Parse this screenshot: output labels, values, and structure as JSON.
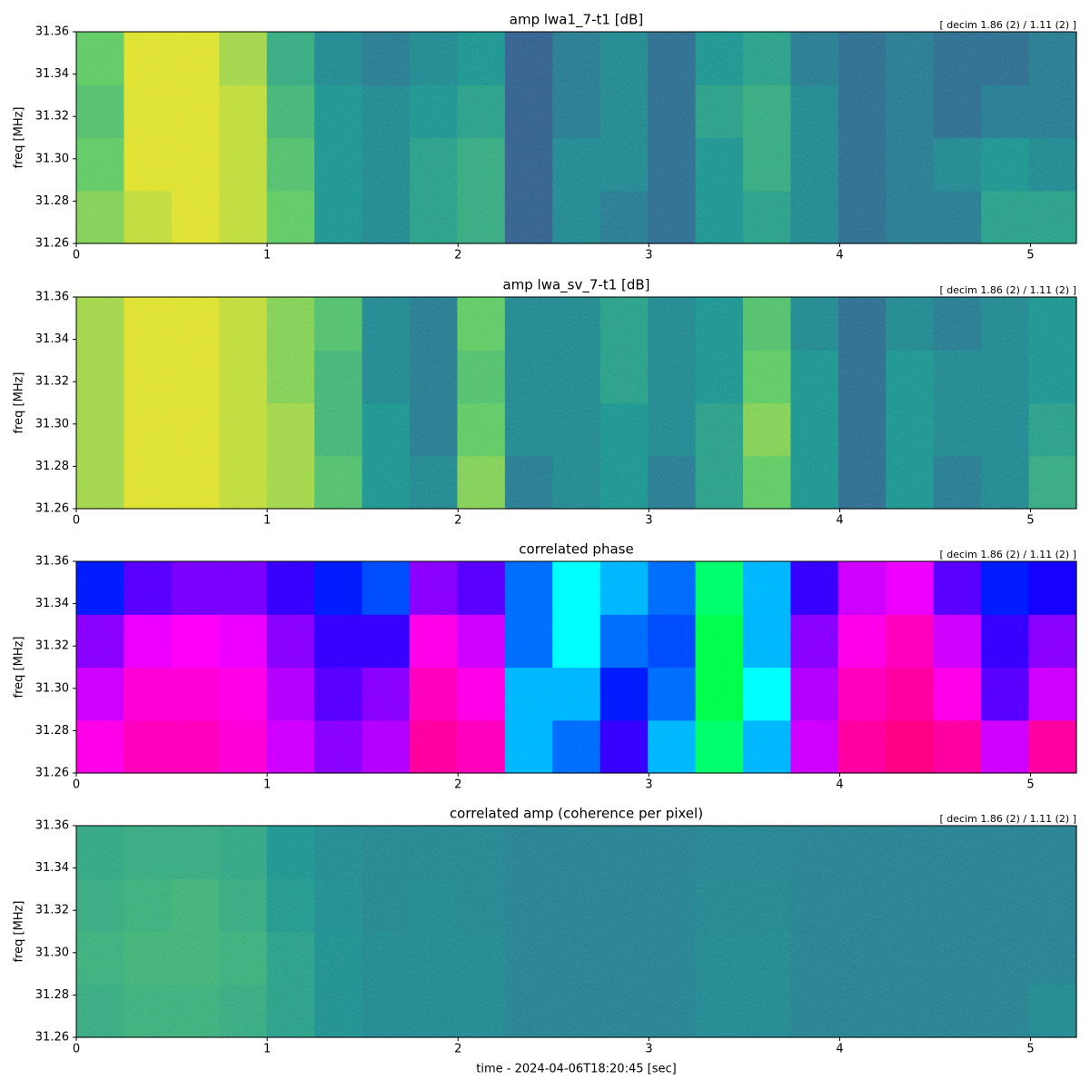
{
  "chart_data": [
    {
      "type": "heatmap",
      "title": "amp lwa1_7-t1 [dB]",
      "note": "[ decim 1.86 (2) / 1.11 (2) ]",
      "ylabel": "freq [MHz]",
      "xlim": [
        0,
        5.24
      ],
      "xticks": [
        0,
        1,
        2,
        3,
        4,
        5
      ],
      "ylim": [
        31.26,
        31.36
      ],
      "yticks": [
        31.26,
        31.28,
        {
          "value": 31.3,
          "label": "31.30"
        },
        31.32,
        31.34,
        31.36
      ],
      "colors": [
        "#440154",
        "#3b528b",
        "#21918c",
        "#5ec962",
        "#fde725"
      ],
      "values": [
        [
          0.8,
          0.9,
          0.95,
          0.9,
          0.75,
          0.5,
          0.45,
          0.55,
          0.6,
          0.3,
          0.45,
          0.4,
          0.35,
          0.5,
          0.55,
          0.45,
          0.35,
          0.4,
          0.4,
          0.55,
          0.55
        ],
        [
          0.75,
          0.95,
          0.95,
          0.9,
          0.7,
          0.5,
          0.45,
          0.55,
          0.6,
          0.3,
          0.45,
          0.45,
          0.35,
          0.5,
          0.6,
          0.45,
          0.35,
          0.4,
          0.45,
          0.5,
          0.45
        ],
        [
          0.7,
          0.95,
          0.95,
          0.9,
          0.65,
          0.5,
          0.45,
          0.5,
          0.55,
          0.3,
          0.4,
          0.45,
          0.35,
          0.55,
          0.6,
          0.45,
          0.35,
          0.4,
          0.35,
          0.4,
          0.4
        ],
        [
          0.75,
          0.95,
          0.95,
          0.85,
          0.6,
          0.45,
          0.4,
          0.45,
          0.5,
          0.3,
          0.4,
          0.45,
          0.35,
          0.5,
          0.55,
          0.4,
          0.35,
          0.4,
          0.35,
          0.35,
          0.4
        ]
      ]
    },
    {
      "type": "heatmap",
      "title": "amp lwa_sv_7-t1 [dB]",
      "note": "[ decim 1.86 (2) / 1.11 (2) ]",
      "ylabel": "freq [MHz]",
      "xlim": [
        0,
        5.24
      ],
      "xticks": [
        0,
        1,
        2,
        3,
        4,
        5
      ],
      "ylim": [
        31.26,
        31.36
      ],
      "yticks": [
        31.26,
        31.28,
        {
          "value": 31.3,
          "label": "31.30"
        },
        31.32,
        31.34,
        31.36
      ],
      "colors": [
        "#440154",
        "#3b528b",
        "#21918c",
        "#5ec962",
        "#fde725"
      ],
      "values": [
        [
          0.85,
          0.95,
          0.95,
          0.9,
          0.85,
          0.7,
          0.5,
          0.45,
          0.8,
          0.4,
          0.45,
          0.5,
          0.4,
          0.55,
          0.75,
          0.5,
          0.35,
          0.5,
          0.4,
          0.45,
          0.6
        ],
        [
          0.85,
          0.95,
          0.95,
          0.9,
          0.85,
          0.65,
          0.5,
          0.4,
          0.75,
          0.45,
          0.45,
          0.5,
          0.45,
          0.55,
          0.8,
          0.5,
          0.35,
          0.5,
          0.45,
          0.45,
          0.55
        ],
        [
          0.85,
          0.95,
          0.95,
          0.9,
          0.8,
          0.65,
          0.45,
          0.4,
          0.7,
          0.45,
          0.45,
          0.55,
          0.45,
          0.5,
          0.75,
          0.5,
          0.35,
          0.5,
          0.45,
          0.45,
          0.5
        ],
        [
          0.85,
          0.95,
          0.95,
          0.9,
          0.8,
          0.7,
          0.45,
          0.4,
          0.75,
          0.45,
          0.45,
          0.55,
          0.45,
          0.5,
          0.7,
          0.45,
          0.35,
          0.45,
          0.4,
          0.45,
          0.5
        ]
      ]
    },
    {
      "type": "heatmap",
      "title": "correlated phase",
      "note": "[ decim 1.86 (2) / 1.11 (2) ]",
      "ylabel": "freq [MHz]",
      "xlim": [
        0,
        5.24
      ],
      "xticks": [
        0,
        1,
        2,
        3,
        4,
        5
      ],
      "ylim": [
        31.26,
        31.36
      ],
      "yticks": [
        31.26,
        31.28,
        {
          "value": 31.3,
          "label": "31.30"
        },
        31.32,
        31.34,
        31.36
      ],
      "colors": [
        "#ff0000",
        "#ffff00",
        "#00ff00",
        "#00ffff",
        "#0000ff",
        "#ff00ff",
        "#ff0000"
      ],
      "values": [
        [
          0.85,
          0.88,
          0.88,
          0.86,
          0.8,
          0.75,
          0.78,
          0.9,
          0.88,
          0.55,
          0.6,
          0.7,
          0.55,
          0.4,
          0.55,
          0.8,
          0.9,
          0.92,
          0.9,
          0.8,
          0.9
        ],
        [
          0.8,
          0.86,
          0.86,
          0.85,
          0.78,
          0.72,
          0.75,
          0.88,
          0.85,
          0.55,
          0.55,
          0.65,
          0.6,
          0.38,
          0.5,
          0.78,
          0.88,
          0.9,
          0.85,
          0.72,
          0.8
        ],
        [
          0.75,
          0.82,
          0.84,
          0.82,
          0.75,
          0.7,
          0.7,
          0.85,
          0.8,
          0.6,
          0.5,
          0.6,
          0.62,
          0.38,
          0.55,
          0.75,
          0.85,
          0.88,
          0.8,
          0.7,
          0.75
        ],
        [
          0.65,
          0.72,
          0.74,
          0.74,
          0.7,
          0.65,
          0.62,
          0.75,
          0.72,
          0.6,
          0.5,
          0.55,
          0.6,
          0.4,
          0.55,
          0.7,
          0.8,
          0.82,
          0.72,
          0.65,
          0.68
        ]
      ]
    },
    {
      "type": "heatmap",
      "title": "correlated amp (coherence per pixel)",
      "note": "[ decim 1.86 (2) / 1.11 (2) ]",
      "ylabel": "freq [MHz]",
      "xlabel": "time - 2024-04-06T18:20:45 [sec]",
      "xlim": [
        0,
        5.24
      ],
      "xticks": [
        0,
        1,
        2,
        3,
        4,
        5
      ],
      "ylim": [
        31.26,
        31.36
      ],
      "yticks": [
        31.26,
        31.28,
        {
          "value": 31.3,
          "label": "31.30"
        },
        31.32,
        31.34,
        31.36
      ],
      "colors": [
        "#440154",
        "#3b528b",
        "#21918c",
        "#5ec962",
        "#fde725"
      ],
      "values": [
        [
          0.6,
          0.62,
          0.62,
          0.6,
          0.55,
          0.48,
          0.45,
          0.45,
          0.45,
          0.42,
          0.42,
          0.42,
          0.42,
          0.45,
          0.45,
          0.42,
          0.42,
          0.42,
          0.42,
          0.42,
          0.45
        ],
        [
          0.62,
          0.64,
          0.64,
          0.62,
          0.55,
          0.48,
          0.45,
          0.45,
          0.45,
          0.42,
          0.42,
          0.42,
          0.42,
          0.45,
          0.45,
          0.42,
          0.42,
          0.42,
          0.42,
          0.42,
          0.42
        ],
        [
          0.6,
          0.62,
          0.64,
          0.6,
          0.52,
          0.47,
          0.44,
          0.45,
          0.44,
          0.42,
          0.42,
          0.42,
          0.42,
          0.44,
          0.44,
          0.42,
          0.42,
          0.42,
          0.42,
          0.42,
          0.42
        ],
        [
          0.58,
          0.6,
          0.6,
          0.58,
          0.5,
          0.46,
          0.44,
          0.44,
          0.44,
          0.42,
          0.42,
          0.42,
          0.42,
          0.43,
          0.43,
          0.42,
          0.42,
          0.42,
          0.42,
          0.42,
          0.42
        ]
      ]
    }
  ]
}
